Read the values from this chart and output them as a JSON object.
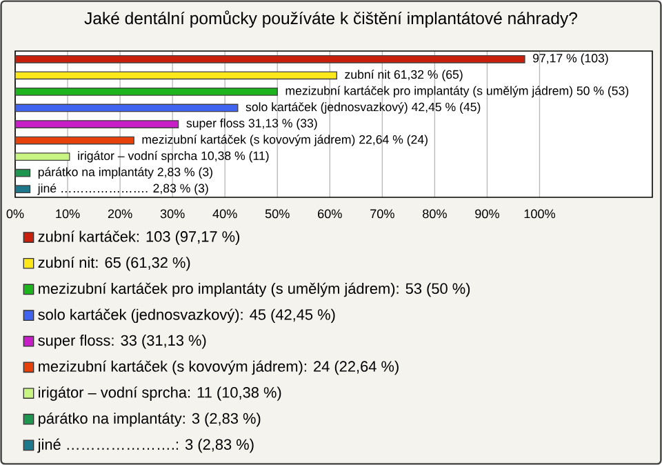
{
  "chart_data": {
    "type": "bar",
    "orientation": "horizontal",
    "title": "Jaké dentální pomůcky používáte k čištění implantátové náhrady?",
    "categories": [
      null,
      null,
      null,
      null,
      null,
      null,
      null,
      null,
      null
    ],
    "series": [
      {
        "name": "zubní kartáček: 103 (97,17 %)",
        "color": "#c8200c",
        "values": [
          97.17,
          null,
          null,
          null,
          null,
          null,
          null,
          null,
          null
        ],
        "value_labels": [
          "97,17 % (103)",
          null,
          null,
          null,
          null,
          null,
          null,
          null,
          null
        ]
      },
      {
        "name": "zubní nit: 65 (61,32 %)",
        "color": "#ffe81a",
        "values": [
          null,
          61.32,
          null,
          null,
          null,
          null,
          null,
          null,
          null
        ],
        "value_labels": [
          null,
          "zubní nit 61,32 % (65)",
          null,
          null,
          null,
          null,
          null,
          null,
          null
        ]
      },
      {
        "name": "mezizubní kartáček pro implantáty (s umělým jádrem): 53 (50 %)",
        "color": "#1eb41e",
        "values": [
          null,
          null,
          50,
          null,
          null,
          null,
          null,
          null,
          null
        ],
        "value_labels": [
          null,
          null,
          "mezizubní kartáček pro implantáty (s umělým jádrem) 50 % (53)",
          null,
          null,
          null,
          null,
          null,
          null
        ]
      },
      {
        "name": "solo kartáček (jednosvazkový): 45 (42,45 %)",
        "color": "#4164f0",
        "values": [
          null,
          null,
          null,
          42.45,
          null,
          null,
          null,
          null,
          null
        ],
        "value_labels": [
          null,
          null,
          null,
          "solo kartáček (jednosvazkový) 42,45 % (45)",
          null,
          null,
          null,
          null,
          null
        ]
      },
      {
        "name": "super floss: 33 (31,13 %)",
        "color": "#c81ec8",
        "values": [
          null,
          null,
          null,
          null,
          31.13,
          null,
          null,
          null,
          null
        ],
        "value_labels": [
          null,
          null,
          null,
          null,
          "super floss 31,13 % (33)",
          null,
          null,
          null,
          null
        ]
      },
      {
        "name": "mezizubní kartáček (s kovovým jádrem): 24 (22,64 %)",
        "color": "#e6410a",
        "values": [
          null,
          null,
          null,
          null,
          null,
          22.64,
          null,
          null,
          null
        ],
        "value_labels": [
          null,
          null,
          null,
          null,
          null,
          "mezizubní kartáček (s kovovým jádrem) 22,64 % (24)",
          null,
          null,
          null
        ]
      },
      {
        "name": "irigátor – vodní sprcha: 11 (10,38 %)",
        "color": "#c8f582",
        "values": [
          null,
          null,
          null,
          null,
          null,
          null,
          10.38,
          null,
          null
        ],
        "value_labels": [
          null,
          null,
          null,
          null,
          null,
          null,
          "irigátor – vodní sprcha 10,38 % (11)",
          null,
          null
        ]
      },
      {
        "name": "párátko na implantáty: 3 (2,83 %)",
        "color": "#1e9650",
        "values": [
          null,
          null,
          null,
          null,
          null,
          null,
          null,
          2.83,
          null
        ],
        "value_labels": [
          null,
          null,
          null,
          null,
          null,
          null,
          null,
          "párátko na implantáty 2,83 % (3)",
          null
        ]
      },
      {
        "name": "jiné ………………….: 3 (2,83 %)",
        "color": "#1e788c",
        "values": [
          null,
          null,
          null,
          null,
          null,
          null,
          null,
          null,
          2.83
        ],
        "value_labels": [
          null,
          null,
          null,
          null,
          null,
          null,
          null,
          null,
          "jiné …………………. 2,83 % (3)"
        ]
      }
    ],
    "xlim": [
      0,
      121.5
    ],
    "xticks": [
      {
        "value": 0,
        "label": "0%"
      },
      {
        "value": 10,
        "label": "10%"
      },
      {
        "value": 20,
        "label": "20%"
      },
      {
        "value": 30,
        "label": "30%"
      },
      {
        "value": 40,
        "label": "40%"
      },
      {
        "value": 50,
        "label": "50%"
      },
      {
        "value": 60,
        "label": "60%"
      },
      {
        "value": 70,
        "label": "70%"
      },
      {
        "value": 80,
        "label": "80%"
      },
      {
        "value": 90,
        "label": "90%"
      },
      {
        "value": 100,
        "label": "100%"
      }
    ],
    "grid": "x",
    "legend": "bottom",
    "tick_labels": "x"
  }
}
